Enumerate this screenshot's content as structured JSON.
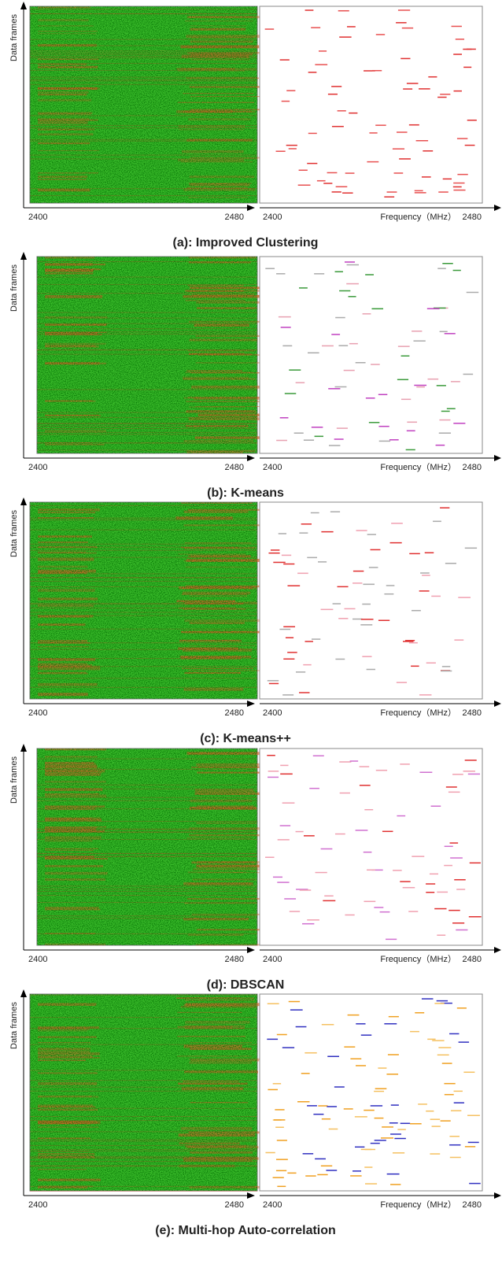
{
  "panels": [
    {
      "caption": "(a): Improved Clustering",
      "y_label": "Data frames",
      "left_ticks": [
        "2400",
        "2480"
      ],
      "right_ticks": [
        "2400",
        "2480"
      ],
      "x_label": "Frequency（MHz）",
      "dash_colors": [
        "#e03030",
        "#e85050"
      ]
    },
    {
      "caption": "(b): K-means",
      "y_label": "Data frames",
      "left_ticks": [
        "2400",
        "2480"
      ],
      "right_ticks": [
        "2400",
        "2480"
      ],
      "x_label": "Frequency（MHz）",
      "dash_colors": [
        "#3a9a3a",
        "#aaaaaa",
        "#e8a0b0",
        "#c040c0"
      ]
    },
    {
      "caption": "(c): K-means++",
      "y_label": "Data frames",
      "left_ticks": [
        "2400",
        "2480"
      ],
      "right_ticks": [
        "2400",
        "2480"
      ],
      "x_label": "Frequency（MHz）",
      "dash_colors": [
        "#e03030",
        "#f0a0b0",
        "#aaaaaa"
      ]
    },
    {
      "caption": "(d): DBSCAN",
      "y_label": "Data frames",
      "left_ticks": [
        "2400",
        "2480"
      ],
      "right_ticks": [
        "2400",
        "2480"
      ],
      "x_label": "Frequency（MHz）",
      "dash_colors": [
        "#e03030",
        "#f0a0b0",
        "#d070d0"
      ]
    },
    {
      "caption": "(e): Multi-hop Auto-correlation",
      "y_label": "Data frames",
      "left_ticks": [
        "2400",
        "2480"
      ],
      "right_ticks": [
        "2400",
        "2480"
      ],
      "x_label": "Frequency（MHz）",
      "dash_colors": [
        "#f0a020",
        "#f5c060",
        "#3030c0"
      ]
    }
  ]
}
